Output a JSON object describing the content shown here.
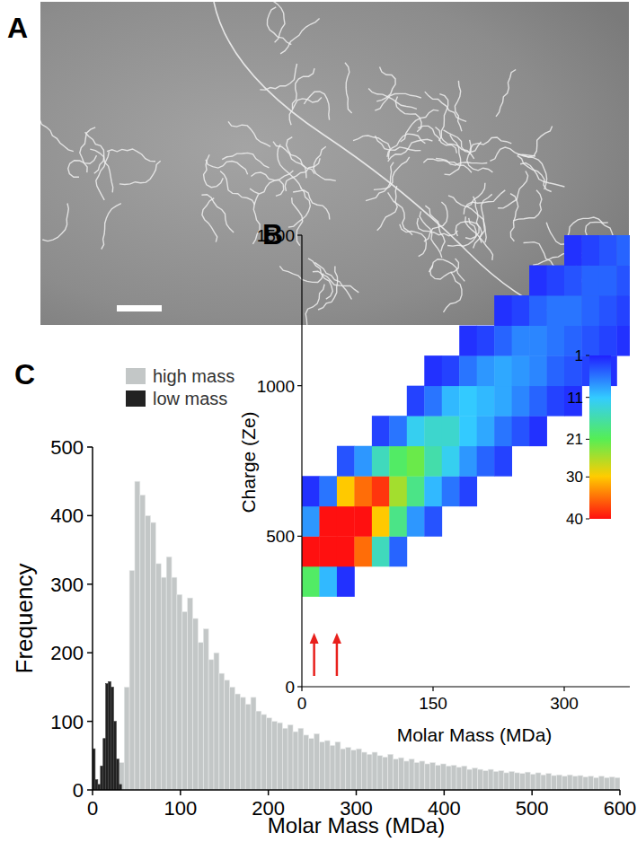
{
  "image": {
    "label": "A"
  },
  "chart_data": [
    {
      "type": "histogram",
      "title": "C",
      "x_label": "Molar Mass (MDa)",
      "y_label": "Frequency",
      "xlim": [
        0,
        600
      ],
      "xticks": [
        0,
        100,
        200,
        300,
        400,
        500,
        600
      ],
      "ylim": [
        0,
        500
      ],
      "yticks": [
        0,
        100,
        200,
        300,
        400,
        500
      ],
      "legend": "upper left",
      "series": [
        {
          "name": "high mass",
          "color": "#c3c7c7",
          "bins": [
            24,
            30,
            36,
            42,
            48,
            54,
            60,
            66,
            72,
            78,
            84,
            90,
            96,
            102,
            108,
            114,
            120,
            126,
            132,
            138,
            144,
            150,
            156,
            162,
            168,
            174,
            180,
            186,
            192,
            198,
            204,
            210,
            216,
            222,
            228,
            234,
            240,
            246,
            252,
            258,
            264,
            270,
            276,
            282,
            288,
            294,
            300,
            306,
            312,
            318,
            324,
            330,
            336,
            342,
            348,
            354,
            360,
            366,
            372,
            378,
            384,
            390,
            396,
            402,
            408,
            414,
            420,
            426,
            432,
            438,
            444,
            450,
            456,
            462,
            468,
            474,
            480,
            486,
            492,
            498,
            504,
            510,
            516,
            522,
            528,
            534,
            540,
            546,
            552,
            558,
            564,
            570,
            576,
            582,
            588,
            594,
            600
          ],
          "values": [
            10,
            40,
            150,
            320,
            450,
            430,
            400,
            390,
            330,
            310,
            340,
            310,
            285,
            260,
            280,
            250,
            215,
            235,
            190,
            200,
            170,
            160,
            150,
            140,
            135,
            125,
            135,
            115,
            110,
            105,
            100,
            98,
            90,
            95,
            85,
            90,
            80,
            75,
            82,
            70,
            72,
            65,
            70,
            60,
            62,
            58,
            60,
            55,
            52,
            55,
            50,
            48,
            52,
            45,
            47,
            42,
            45,
            40,
            42,
            38,
            40,
            36,
            38,
            35,
            36,
            33,
            35,
            30,
            32,
            30,
            28,
            30,
            27,
            28,
            25,
            27,
            25,
            24,
            26,
            23,
            25,
            22,
            24,
            21,
            22,
            20,
            22,
            20,
            21,
            19,
            20,
            18,
            20,
            18,
            19,
            18
          ]
        },
        {
          "name": "low mass",
          "color": "#222222",
          "bins": [
            0,
            3,
            6,
            9,
            12,
            15,
            18,
            21,
            24,
            27,
            30,
            33
          ],
          "values": [
            60,
            15,
            8,
            35,
            75,
            155,
            158,
            150,
            100,
            45,
            8
          ]
        }
      ]
    },
    {
      "type": "heatmap",
      "title": "B",
      "x_label": "Molar Mass (MDa)",
      "y_label": "Charge (Ze)",
      "xlim": [
        0,
        375
      ],
      "xticks": [
        0,
        150,
        300
      ],
      "ylim": [
        0,
        1500
      ],
      "yticks": [
        0,
        500,
        1000,
        1500
      ],
      "cell_width": 20,
      "cell_height": 100,
      "cells": [
        [
          0,
          300,
          20
        ],
        [
          0,
          400,
          40
        ],
        [
          0,
          500,
          8
        ],
        [
          0,
          600,
          2
        ],
        [
          20,
          300,
          10
        ],
        [
          20,
          400,
          40
        ],
        [
          20,
          500,
          40
        ],
        [
          20,
          600,
          6
        ],
        [
          40,
          300,
          2
        ],
        [
          40,
          400,
          40
        ],
        [
          40,
          500,
          40
        ],
        [
          40,
          600,
          30
        ],
        [
          40,
          700,
          4
        ],
        [
          60,
          400,
          35
        ],
        [
          60,
          500,
          40
        ],
        [
          60,
          600,
          35
        ],
        [
          60,
          700,
          8
        ],
        [
          80,
          400,
          15
        ],
        [
          80,
          500,
          30
        ],
        [
          80,
          600,
          38
        ],
        [
          80,
          700,
          15
        ],
        [
          80,
          800,
          3
        ],
        [
          100,
          400,
          5
        ],
        [
          100,
          500,
          18
        ],
        [
          100,
          600,
          25
        ],
        [
          100,
          700,
          20
        ],
        [
          100,
          800,
          6
        ],
        [
          120,
          500,
          8
        ],
        [
          120,
          600,
          18
        ],
        [
          120,
          700,
          22
        ],
        [
          120,
          800,
          12
        ],
        [
          120,
          900,
          3
        ],
        [
          140,
          500,
          4
        ],
        [
          140,
          600,
          10
        ],
        [
          140,
          700,
          16
        ],
        [
          140,
          800,
          14
        ],
        [
          140,
          900,
          6
        ],
        [
          140,
          1000,
          2
        ],
        [
          160,
          600,
          6
        ],
        [
          160,
          700,
          12
        ],
        [
          160,
          800,
          14
        ],
        [
          160,
          900,
          10
        ],
        [
          160,
          1000,
          3
        ],
        [
          180,
          600,
          3
        ],
        [
          180,
          700,
          8
        ],
        [
          180,
          800,
          11
        ],
        [
          180,
          900,
          11
        ],
        [
          180,
          1000,
          6
        ],
        [
          180,
          1100,
          2
        ],
        [
          200,
          700,
          5
        ],
        [
          200,
          800,
          9
        ],
        [
          200,
          900,
          10
        ],
        [
          200,
          1000,
          8
        ],
        [
          200,
          1100,
          3
        ],
        [
          220,
          700,
          3
        ],
        [
          220,
          800,
          6
        ],
        [
          220,
          900,
          9
        ],
        [
          220,
          1000,
          9
        ],
        [
          220,
          1100,
          5
        ],
        [
          220,
          1200,
          2
        ],
        [
          240,
          800,
          4
        ],
        [
          240,
          900,
          7
        ],
        [
          240,
          1000,
          8
        ],
        [
          240,
          1100,
          7
        ],
        [
          240,
          1200,
          3
        ],
        [
          260,
          800,
          2
        ],
        [
          260,
          900,
          5
        ],
        [
          260,
          1000,
          7
        ],
        [
          260,
          1100,
          7
        ],
        [
          260,
          1200,
          5
        ],
        [
          260,
          1300,
          2
        ],
        [
          280,
          900,
          3
        ],
        [
          280,
          1000,
          5
        ],
        [
          280,
          1100,
          6
        ],
        [
          280,
          1200,
          6
        ],
        [
          280,
          1300,
          3
        ],
        [
          300,
          900,
          2
        ],
        [
          300,
          1000,
          4
        ],
        [
          300,
          1100,
          5
        ],
        [
          300,
          1200,
          6
        ],
        [
          300,
          1300,
          4
        ],
        [
          300,
          1400,
          2
        ],
        [
          320,
          1000,
          3
        ],
        [
          320,
          1100,
          4
        ],
        [
          320,
          1200,
          5
        ],
        [
          320,
          1300,
          5
        ],
        [
          320,
          1400,
          3
        ],
        [
          340,
          1000,
          2
        ],
        [
          340,
          1100,
          3
        ],
        [
          340,
          1200,
          4
        ],
        [
          340,
          1300,
          5
        ],
        [
          340,
          1400,
          4
        ],
        [
          360,
          1100,
          2
        ],
        [
          360,
          1200,
          3
        ],
        [
          360,
          1300,
          4
        ],
        [
          360,
          1400,
          5
        ]
      ],
      "colorbar_range": [
        1,
        40
      ],
      "colorbar_ticks": [
        1,
        11,
        21,
        30,
        40
      ],
      "arrows_x": [
        14,
        40
      ]
    }
  ]
}
